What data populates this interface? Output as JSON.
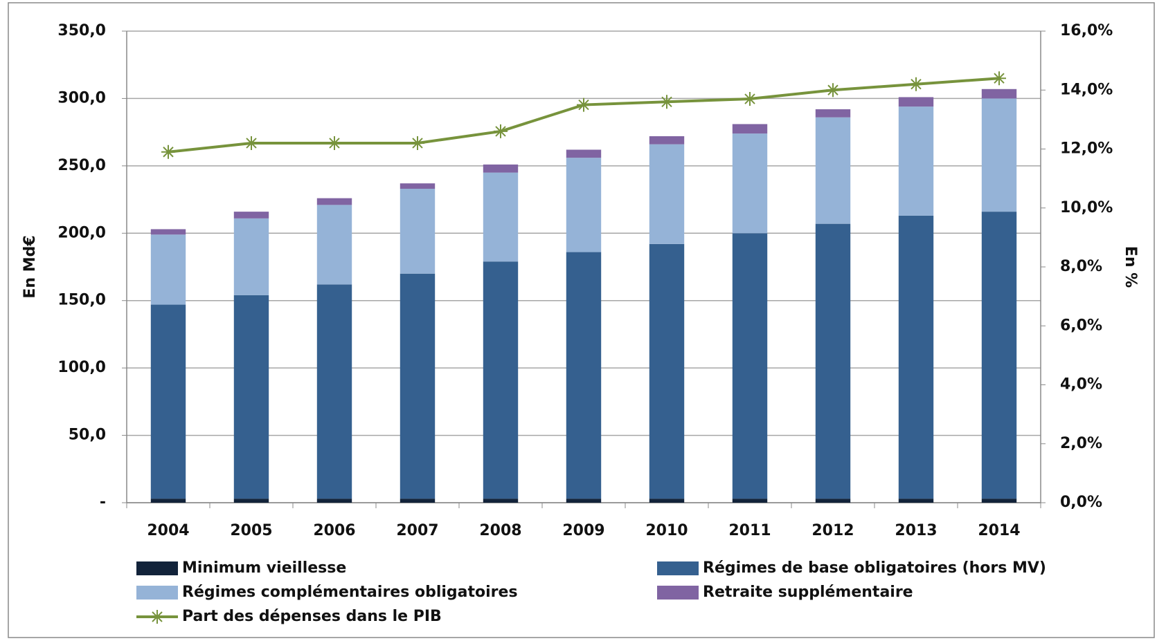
{
  "chart_data": {
    "type": "bar",
    "stacked": true,
    "y_label": "En Md€",
    "y2_label": "En %",
    "categories": [
      "2004",
      "2005",
      "2006",
      "2007",
      "2008",
      "2009",
      "2010",
      "2011",
      "2012",
      "2013",
      "2014"
    ],
    "series": [
      {
        "name": "Minimum vieillesse",
        "color": "#12233a",
        "values": [
          3,
          3,
          3,
          3,
          3,
          3,
          3,
          3,
          3,
          3,
          3
        ]
      },
      {
        "name": "Régimes de base obligatoires (hors MV)",
        "color": "#35608f",
        "values": [
          144,
          151,
          159,
          167,
          176,
          183,
          189,
          197,
          204,
          210,
          213
        ]
      },
      {
        "name": "Régimes complémentaires obligatoires",
        "color": "#95b3d7",
        "values": [
          52,
          57,
          59,
          63,
          66,
          70,
          74,
          74,
          79,
          81,
          84
        ]
      },
      {
        "name": "Retraite supplémentaire",
        "color": "#8064a2",
        "values": [
          4,
          5,
          5,
          4,
          6,
          6,
          6,
          7,
          6,
          7,
          7
        ]
      },
      {
        "name": "Part des dépenses dans le PIB",
        "color": "#77933c",
        "type": "line",
        "axis": "y2",
        "values": [
          11.9,
          12.2,
          12.2,
          12.2,
          12.6,
          13.5,
          13.6,
          13.7,
          14.0,
          14.2,
          14.4
        ]
      }
    ],
    "ylim": [
      0,
      350
    ],
    "yticks": [
      {
        "value": 0,
        "label": "-"
      },
      {
        "value": 50,
        "label": "50,0"
      },
      {
        "value": 100,
        "label": "100,0"
      },
      {
        "value": 150,
        "label": "150,0"
      },
      {
        "value": 200,
        "label": "200,0"
      },
      {
        "value": 250,
        "label": "250,0"
      },
      {
        "value": 300,
        "label": "300,0"
      },
      {
        "value": 350,
        "label": "350,0"
      }
    ],
    "y2lim": [
      0,
      16
    ],
    "y2ticks": [
      {
        "value": 0,
        "label": "0,0%"
      },
      {
        "value": 2,
        "label": "2,0%"
      },
      {
        "value": 4,
        "label": "4,0%"
      },
      {
        "value": 6,
        "label": "6,0%"
      },
      {
        "value": 8,
        "label": "8,0%"
      },
      {
        "value": 10,
        "label": "10,0%"
      },
      {
        "value": 12,
        "label": "12,0%"
      },
      {
        "value": 14,
        "label": "14,0%"
      },
      {
        "value": 16,
        "label": "16,0%"
      }
    ],
    "grid": true
  }
}
